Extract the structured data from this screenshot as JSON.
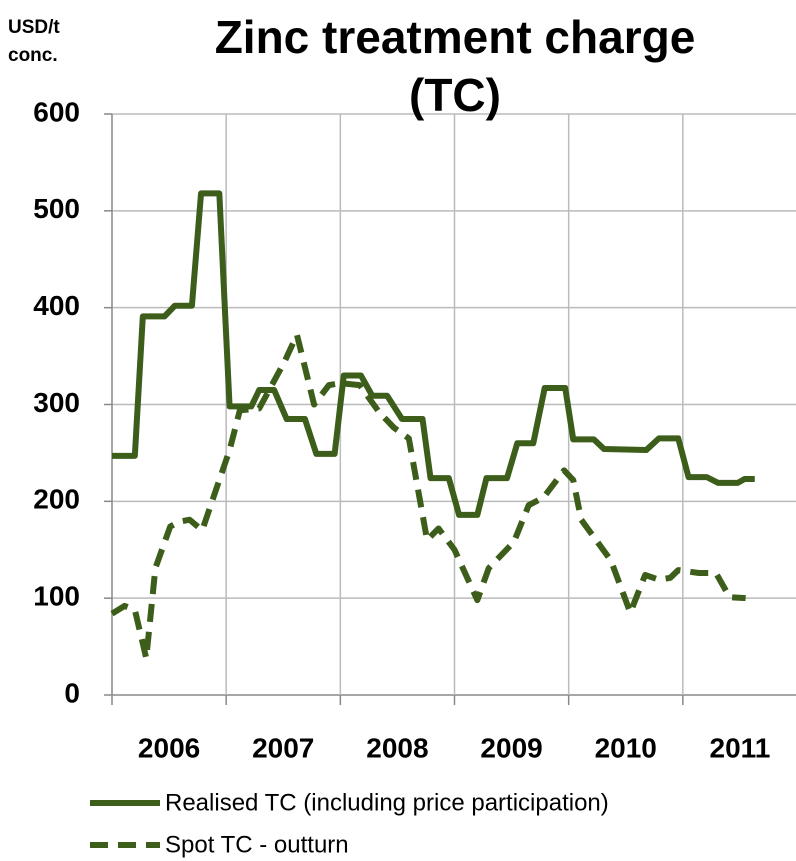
{
  "chart_data": {
    "type": "line",
    "title": "Zinc treatment charge (TC)",
    "y_label": "USD/t conc.",
    "xlim": [
      2006,
      2012
    ],
    "xticks": [
      2006,
      2007,
      2008,
      2009,
      2010,
      2011
    ],
    "ylim": [
      0,
      600
    ],
    "yticks": [
      0,
      100,
      200,
      300,
      400,
      500,
      600
    ],
    "grid": true,
    "legend": "bottom",
    "series": [
      {
        "name": "Realised TC (including price participation)",
        "color": "#3d5e1a",
        "dashed": false,
        "x": [
          2006.0,
          2006.2,
          2006.27,
          2006.46,
          2006.55,
          2006.7,
          2006.78,
          2006.94,
          2007.03,
          2007.22,
          2007.29,
          2007.42,
          2007.53,
          2007.69,
          2007.79,
          2007.95,
          2008.03,
          2008.18,
          2008.28,
          2008.41,
          2008.54,
          2008.72,
          2008.79,
          2008.95,
          2009.04,
          2009.2,
          2009.28,
          2009.46,
          2009.55,
          2009.69,
          2009.79,
          2009.97,
          2010.04,
          2010.22,
          2010.31,
          2010.68,
          2010.79,
          2010.96,
          2011.05,
          2011.21,
          2011.31,
          2011.48,
          2011.54,
          2011.63
        ],
        "values": [
          247,
          247,
          391,
          391,
          402,
          402,
          518,
          518,
          298,
          298,
          315,
          315,
          285,
          285,
          249,
          249,
          330,
          330,
          309,
          309,
          285,
          285,
          224,
          224,
          186,
          186,
          224,
          224,
          260,
          260,
          317,
          317,
          264,
          264,
          254,
          253,
          265,
          265,
          225,
          225,
          219,
          219,
          223,
          223
        ]
      },
      {
        "name": "Spot TC - outturn",
        "color": "#3d5e1a",
        "dashed": true,
        "x": [
          2006.0,
          2006.11,
          2006.2,
          2006.3,
          2006.38,
          2006.51,
          2006.59,
          2006.68,
          2006.79,
          2006.94,
          2007.03,
          2007.12,
          2007.29,
          2007.51,
          2007.62,
          2007.77,
          2007.9,
          2008.0,
          2008.17,
          2008.34,
          2008.47,
          2008.6,
          2008.76,
          2008.86,
          2009.0,
          2009.2,
          2009.3,
          2009.52,
          2009.65,
          2009.78,
          2009.96,
          2010.04,
          2010.11,
          2010.37,
          2010.54,
          2010.67,
          2010.79,
          2010.89,
          2010.96,
          2011.14,
          2011.29,
          2011.41,
          2011.55
        ],
        "values": [
          84,
          92,
          88,
          38,
          131,
          174,
          179,
          181,
          170,
          222,
          253,
          294,
          296,
          344,
          372,
          300,
          320,
          322,
          320,
          292,
          276,
          265,
          160,
          172,
          150,
          98,
          131,
          158,
          196,
          204,
          232,
          222,
          181,
          139,
          85,
          124,
          119,
          121,
          129,
          126,
          126,
          101,
          100
        ]
      }
    ]
  }
}
